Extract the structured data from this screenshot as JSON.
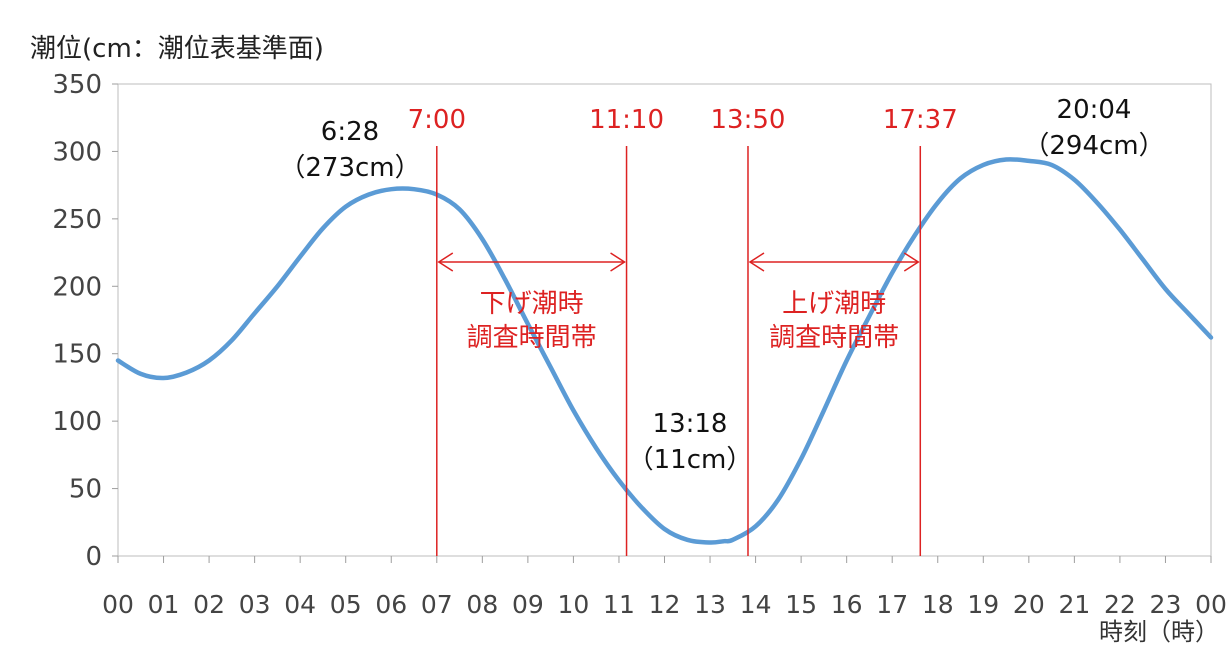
{
  "chart_data": {
    "type": "line",
    "ylabel": "潮位(cm：潮位表基準面)",
    "xlabel": "時刻（時）",
    "xlim": [
      0,
      24
    ],
    "ylim": [
      0,
      350
    ],
    "y_ticks": [
      0,
      50,
      100,
      150,
      200,
      250,
      300,
      350
    ],
    "x_tick_labels": [
      "00",
      "01",
      "02",
      "03",
      "04",
      "05",
      "06",
      "07",
      "08",
      "09",
      "10",
      "11",
      "12",
      "13",
      "14",
      "15",
      "16",
      "17",
      "18",
      "19",
      "20",
      "21",
      "22",
      "23",
      "00"
    ],
    "series": [
      {
        "color": "#5b9bd5",
        "x": [
          0,
          0.5,
          1,
          1.5,
          2,
          2.5,
          3,
          3.5,
          4,
          4.5,
          5,
          5.5,
          6,
          6.5,
          7,
          7.5,
          8,
          8.5,
          9,
          9.5,
          10,
          10.5,
          11,
          11.5,
          12,
          12.5,
          13,
          13.3,
          13.5,
          14,
          14.5,
          15,
          15.5,
          16,
          16.5,
          17,
          17.5,
          18,
          18.5,
          19,
          19.5,
          20,
          20.5,
          21,
          21.5,
          22,
          22.5,
          23,
          23.5,
          24
        ],
        "y": [
          145,
          135,
          132,
          136,
          145,
          160,
          180,
          200,
          222,
          243,
          259,
          268,
          272,
          272,
          268,
          257,
          235,
          205,
          172,
          140,
          108,
          80,
          56,
          36,
          20,
          12,
          10,
          11,
          12,
          22,
          42,
          72,
          108,
          145,
          178,
          210,
          238,
          262,
          280,
          290,
          294,
          293,
          290,
          279,
          262,
          242,
          220,
          198,
          180,
          162
        ]
      }
    ],
    "reference_lines": [
      {
        "x": 7.0,
        "label": "7:00",
        "color": "#dd2222"
      },
      {
        "x": 11.1667,
        "label": "11:10",
        "color": "#dd2222"
      },
      {
        "x": 13.8333,
        "label": "13:50",
        "color": "#dd2222"
      },
      {
        "x": 17.6167,
        "label": "17:37",
        "color": "#dd2222"
      }
    ],
    "ranges": [
      {
        "x_start": 7.0,
        "x_end": 11.1667,
        "y": 218,
        "line1": "下げ潮時",
        "line2": "調査時間帯",
        "color": "#dd2222"
      },
      {
        "x_start": 13.8333,
        "x_end": 17.6167,
        "y": 218,
        "line1": "上げ潮時",
        "line2": "調査時間帯",
        "color": "#dd2222"
      }
    ],
    "annotations": [
      {
        "time": "6:28",
        "value": "（273cm）",
        "x": 6.47,
        "y": 273
      },
      {
        "time": "13:18",
        "value": "（11cm）",
        "x": 13.3,
        "y": 11
      },
      {
        "time": "20:04",
        "value": "（294cm）",
        "x": 20.07,
        "y": 294
      }
    ],
    "grid": false
  }
}
